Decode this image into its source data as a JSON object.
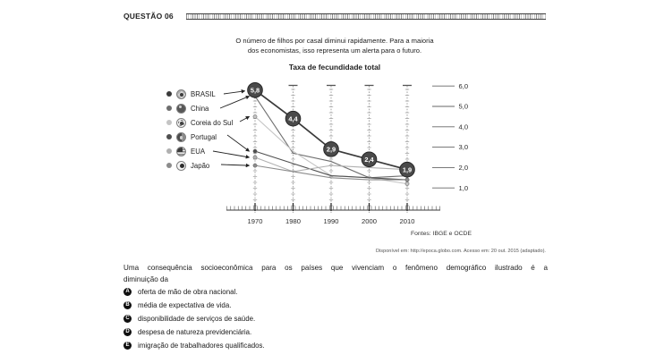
{
  "header": {
    "question_label": "QUESTÃO 06"
  },
  "intro": {
    "line1": "O número de filhos por casal diminui rapidamente. Para a maioria",
    "line2": "dos economistas, isso representa um alerta para o futuro."
  },
  "chart_data": {
    "type": "line",
    "title": "Taxa de fecundidade total",
    "x": [
      1970,
      1980,
      1990,
      2000,
      2010
    ],
    "series": [
      {
        "name": "BRASIL",
        "values": [
          5.8,
          4.4,
          2.9,
          2.4,
          1.9
        ],
        "color": "#3a3a3a",
        "labeled": true
      },
      {
        "name": "China",
        "values": [
          5.5,
          2.7,
          2.3,
          1.5,
          1.6
        ],
        "color": "#6e6e6e",
        "labeled": false
      },
      {
        "name": "Coreia do Sul",
        "values": [
          4.5,
          2.8,
          1.6,
          1.5,
          1.2
        ],
        "color": "#c4c4c4",
        "labeled": false
      },
      {
        "name": "Portugal",
        "values": [
          2.8,
          2.2,
          1.6,
          1.5,
          1.4
        ],
        "color": "#4f4f4f",
        "labeled": false
      },
      {
        "name": "EUA",
        "values": [
          2.5,
          1.8,
          2.1,
          2.0,
          1.9
        ],
        "color": "#b0b0b0",
        "labeled": false
      },
      {
        "name": "Japão",
        "values": [
          2.1,
          1.8,
          1.5,
          1.4,
          1.4
        ],
        "color": "#8c8c8c",
        "labeled": false
      }
    ],
    "point_labels": [
      "5,8",
      "4,4",
      "2,9",
      "2,4",
      "1,9"
    ],
    "ytick_values": [
      6,
      5,
      4,
      3,
      2,
      1
    ],
    "yticks": [
      "6,0",
      "5,0",
      "4,0",
      "3,0",
      "2,0",
      "1,0"
    ],
    "ylim": [
      0,
      6.3
    ],
    "grid": "vertical-dashed",
    "legend_position": "left",
    "source": "Fontes: IBGE e OCDE"
  },
  "legend": [
    {
      "label": "BRASIL"
    },
    {
      "label": "China"
    },
    {
      "label": "Coreia do Sul"
    },
    {
      "label": "Portugal"
    },
    {
      "label": "EUA"
    },
    {
      "label": "Japão"
    }
  ],
  "credit": "Disponível em: http://epoca.globo.com. Acesso em: 20 out. 2015 (adaptado).",
  "question": {
    "stem_line1": "Uma consequência socioeconômica para os países que vivenciam o fenômeno demográfico ilustrado é a",
    "stem_line2": "diminuição da"
  },
  "options": [
    {
      "letter": "A",
      "text": "oferta de mão de obra nacional."
    },
    {
      "letter": "B",
      "text": "média de expectativa de vida."
    },
    {
      "letter": "C",
      "text": "disponibilidade de serviços de saúde."
    },
    {
      "letter": "D",
      "text": "despesa de natureza previdenciária."
    },
    {
      "letter": "E",
      "text": "imigração de trabalhadores qualificados."
    }
  ]
}
